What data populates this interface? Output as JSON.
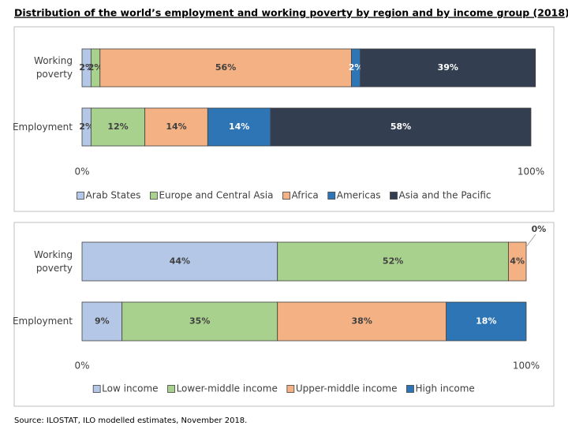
{
  "title": "Distribution of the world’s employment and working poverty by region and by income group (2018)",
  "source": "Source: ILOSTAT, ILO modelled estimates, November 2018.",
  "chart_data": [
    {
      "type": "stacked-barh",
      "categories": [
        "Working poverty",
        "Employment"
      ],
      "xlim": [
        0,
        100
      ],
      "xticks": [
        {
          "value": 0,
          "label": "0%"
        },
        {
          "value": 100,
          "label": "100%"
        }
      ],
      "legend": "bottom",
      "series": [
        {
          "name": "Arab States",
          "color": "#b4c7e7",
          "values": [
            2,
            2
          ],
          "value_labels": [
            "2%",
            "2%"
          ]
        },
        {
          "name": "Europe and Central Asia",
          "color": "#a9d18e",
          "values": [
            2,
            12
          ],
          "value_labels": [
            "2%",
            "12%"
          ]
        },
        {
          "name": "Africa",
          "color": "#f4b183",
          "values": [
            56,
            14
          ],
          "value_labels": [
            "56%",
            "14%"
          ]
        },
        {
          "name": "Americas",
          "color": "#2e75b6",
          "values": [
            2,
            14
          ],
          "value_labels": [
            "2%",
            "14%"
          ]
        },
        {
          "name": "Asia and the Pacific",
          "color": "#333f50",
          "values": [
            39,
            58
          ],
          "value_labels": [
            "39%",
            "58%"
          ]
        }
      ]
    },
    {
      "type": "stacked-barh",
      "categories": [
        "Working poverty",
        "Employment"
      ],
      "xlim": [
        0,
        100
      ],
      "xticks": [
        {
          "value": 0,
          "label": "0%"
        },
        {
          "value": 100,
          "label": "100%"
        }
      ],
      "legend": "bottom",
      "series": [
        {
          "name": "Low income",
          "color": "#b4c7e7",
          "values": [
            44,
            9
          ],
          "value_labels": [
            "44%",
            "9%"
          ]
        },
        {
          "name": "Lower-middle income",
          "color": "#a9d18e",
          "values": [
            52,
            35
          ],
          "value_labels": [
            "52%",
            "35%"
          ]
        },
        {
          "name": "Upper-middle income",
          "color": "#f4b183",
          "values": [
            4,
            38
          ],
          "value_labels": [
            "4%",
            "38%"
          ]
        },
        {
          "name": "High income",
          "color": "#2e75b6",
          "values": [
            0,
            18
          ],
          "value_labels": [
            "0%",
            "18%"
          ]
        }
      ]
    }
  ]
}
